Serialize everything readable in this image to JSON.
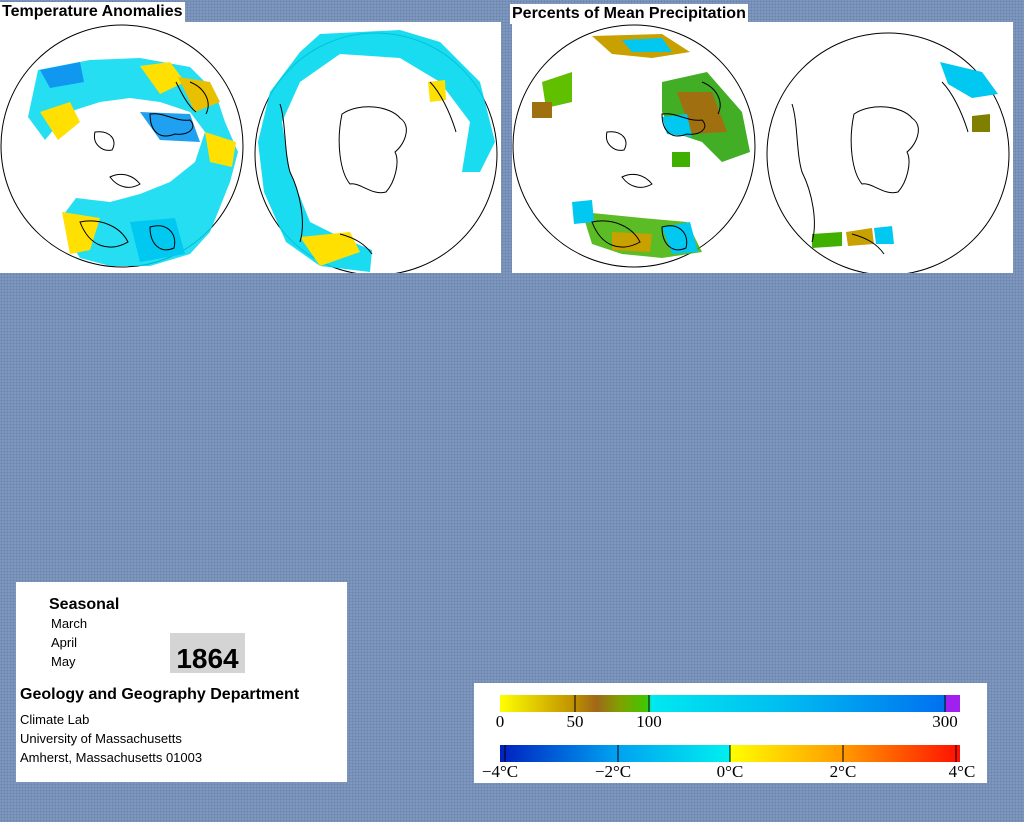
{
  "temperature_panel": {
    "title": "Temperature Anomalies"
  },
  "precipitation_panel": {
    "title": "Percents of Mean Precipitation"
  },
  "info": {
    "heading": "Seasonal",
    "months": [
      "March",
      "April",
      "May"
    ],
    "year": "1864",
    "department": "Geology and Geography Department",
    "address_lines": [
      "Climate Lab",
      "University of Massachusetts",
      "Amherst, Massachusetts 01003"
    ]
  },
  "precip_legend": {
    "ticks": [
      "0",
      "50",
      "100",
      "300"
    ],
    "colors": [
      "#ffff00",
      "#a0700a",
      "#40c800",
      "#00e0f0",
      "#0060f0",
      "#a020f0"
    ]
  },
  "temp_legend": {
    "ticks": [
      "−4°C",
      "−2°C",
      "0°C",
      "2°C",
      "4°C"
    ],
    "colors": [
      "#0030d0",
      "#00a0f0",
      "#00e8f0",
      "#ffff00",
      "#ff9000",
      "#ff2000"
    ]
  }
}
